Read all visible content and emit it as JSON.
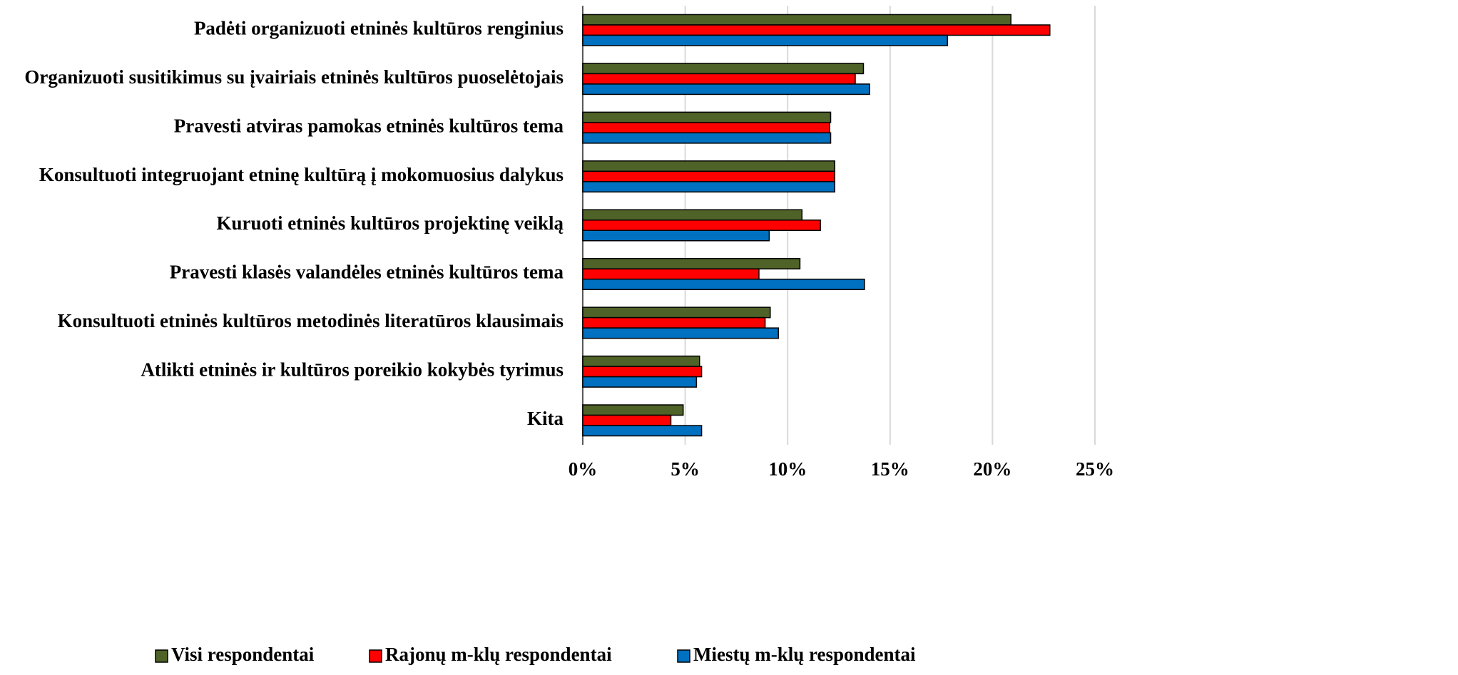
{
  "chart_data": {
    "type": "bar",
    "orientation": "horizontal",
    "categories": [
      "Padėti organizuoti etninės kultūros renginius",
      "Organizuoti susitikimus su įvairiais etninės kultūros puoselėtojais",
      "Pravesti atviras pamokas etninės kultūros tema",
      "Konsultuoti integruojant etninę kultūrą į mokomuosius dalykus",
      "Kuruoti etninės kultūros projektinę veiklą",
      "Pravesti klasės valandėles etninės kultūros tema",
      "Konsultuoti etninės kultūros metodinės literatūros klausimais",
      "Atlikti etninės ir kultūros poreikio kokybės tyrimus",
      "Kita"
    ],
    "series": [
      {
        "name": "Visi respondentai",
        "color": "#4f6228",
        "values": [
          20.9,
          13.7,
          12.1,
          12.3,
          10.7,
          10.6,
          9.15,
          5.7,
          4.9
        ]
      },
      {
        "name": "Rajonų  m-klų respondentai",
        "color": "#ff0000",
        "values": [
          22.8,
          13.3,
          12.05,
          12.3,
          11.6,
          8.6,
          8.9,
          5.8,
          4.3
        ]
      },
      {
        "name": "Miestų m-klų respondentai",
        "color": "#0070c0",
        "values": [
          17.8,
          14.0,
          12.1,
          12.3,
          9.1,
          13.75,
          9.55,
          5.55,
          5.8
        ]
      }
    ],
    "xlim": [
      0,
      25
    ],
    "xticks": [
      {
        "value": 0,
        "label": "0%"
      },
      {
        "value": 5,
        "label": "5%"
      },
      {
        "value": 10,
        "label": "10%"
      },
      {
        "value": 15,
        "label": "15%"
      },
      {
        "value": 20,
        "label": "20%"
      },
      {
        "value": 25,
        "label": "25%"
      }
    ],
    "grid": true,
    "legend": "bottom"
  }
}
